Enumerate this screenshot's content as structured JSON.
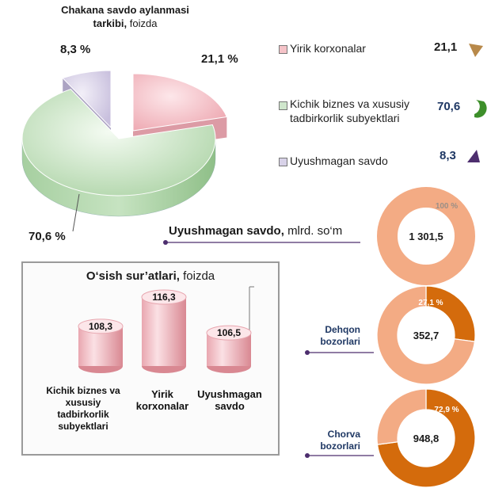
{
  "pie": {
    "title_bold": "Chakana savdo aylanmasi tarkibi,",
    "title_light": "foizda",
    "labels": {
      "small": "8,3 %",
      "mid": "21,1 %",
      "big": "70,6 %"
    }
  },
  "legend": [
    {
      "label": "Yirik korxonalar",
      "value": "21,1",
      "color": "#f5c3c8",
      "value_color": "#1a1a1a",
      "icon_color": "#b8894a",
      "icon": "pie-slice-icon"
    },
    {
      "label_line1": "Kichik biznes va xususiy",
      "label_line2": "tadbirkorlik subyektlari",
      "value": "70,6",
      "color": "#cfe6cc",
      "value_color": "#1f3864",
      "icon_color": "#3d8f2a",
      "icon": "pie-slice-icon"
    },
    {
      "label": "Uyushmagan savdo",
      "value": "8,3",
      "color": "#d8d2e8",
      "value_color": "#1f3864",
      "icon_color": "#4d2e6e",
      "icon": "pie-slice-icon"
    }
  ],
  "uyushmagan": {
    "title_bold": "Uyushmagan savdo,",
    "title_light": "mlrd. so‘m"
  },
  "donuts": [
    {
      "center": "1 301,5",
      "pct": "100 %",
      "label_line1": "",
      "label_line2": ""
    },
    {
      "center": "352,7",
      "pct": "27,1 %",
      "label_line1": "Dehqon",
      "label_line2": "bozorlari"
    },
    {
      "center": "948,8",
      "pct": "72,9 %",
      "label_line1": "Chorva",
      "label_line2": "bozorlari"
    }
  ],
  "growth": {
    "title_bold": "O‘sish sur’atlari,",
    "title_light": "foizda",
    "bars": [
      {
        "value": "108,3",
        "label_line1": "Kichik biznes va",
        "label_line2": "xususiy",
        "label_line3": "tadbirkorlik",
        "label_line4": "subyektlari"
      },
      {
        "value": "116,3",
        "label_line1": "Yirik",
        "label_line2": "korxonalar",
        "label_line3": "",
        "label_line4": ""
      },
      {
        "value": "106,5",
        "label_line1": "Uyushmagan",
        "label_line2": "savdo",
        "label_line3": "",
        "label_line4": ""
      }
    ]
  },
  "chart_data": [
    {
      "type": "pie",
      "title": "Chakana savdo aylanmasi tarkibi, foizda",
      "categories": [
        "Yirik korxonalar",
        "Kichik biznes va xususiy tadbirkorlik subyektlari",
        "Uyushmagan savdo"
      ],
      "values": [
        21.1,
        70.6,
        8.3
      ],
      "colors": [
        "#f2b8bf",
        "#c4e0c0",
        "#d2cbe3"
      ]
    },
    {
      "type": "pie",
      "title": "Uyushmagan savdo, mlrd. so‘m",
      "categories": [
        "Dehqon bozorlari",
        "Chorva bozorlari"
      ],
      "values": [
        352.7,
        948.8
      ],
      "total": 1301.5,
      "shares_percent": [
        27.1,
        72.9
      ],
      "colors": [
        "#d46b0c",
        "#f3ab84"
      ]
    },
    {
      "type": "bar",
      "title": "O‘sish sur’atlari, foizda",
      "categories": [
        "Kichik biznes va xususiy tadbirkorlik subyektlari",
        "Yirik korxonalar",
        "Uyushmagan savdo"
      ],
      "values": [
        108.3,
        116.3,
        106.5
      ]
    }
  ]
}
